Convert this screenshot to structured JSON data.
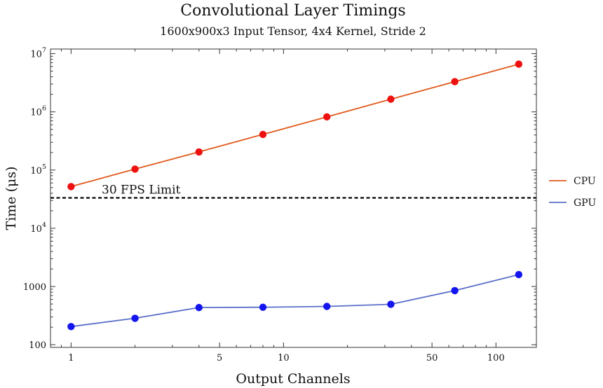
{
  "chart_data": {
    "type": "line",
    "title": "Convolutional Layer Timings",
    "subtitle": "1600x900x3 Input Tensor, 4x4 Kernel, Stride 2",
    "xlabel": "Output Channels",
    "ylabel": "Time (μs)",
    "xscale": "log",
    "yscale": "log",
    "xlim": [
      0.8,
      155
    ],
    "ylim": [
      90,
      12000000
    ],
    "x_ticks": [
      {
        "value": 1,
        "label": "1"
      },
      {
        "value": 5,
        "label": "5"
      },
      {
        "value": 10,
        "label": "10"
      },
      {
        "value": 50,
        "label": "50"
      },
      {
        "value": 100,
        "label": "100"
      }
    ],
    "y_ticks": [
      {
        "value": 100,
        "base": "100",
        "exp": ""
      },
      {
        "value": 1000,
        "base": "1000",
        "exp": ""
      },
      {
        "value": 10000,
        "base": "10",
        "exp": "4"
      },
      {
        "value": 100000,
        "base": "10",
        "exp": "5"
      },
      {
        "value": 1000000,
        "base": "10",
        "exp": "6"
      },
      {
        "value": 10000000,
        "base": "10",
        "exp": "7"
      }
    ],
    "x": [
      1,
      2,
      4,
      8,
      16,
      32,
      64,
      128
    ],
    "series": [
      {
        "name": "CPU",
        "line_color": "#e05a1c",
        "marker_color": "#ee1111",
        "values": [
          52000,
          104000,
          205000,
          410000,
          820000,
          1650000,
          3300000,
          6600000
        ]
      },
      {
        "name": "GPU",
        "line_color": "#5b6fc9",
        "marker_color": "#1414ee",
        "values": [
          205,
          285,
          435,
          440,
          455,
          495,
          850,
          1600
        ]
      }
    ],
    "reference_line": {
      "value": 33333,
      "label": "30 FPS Limit",
      "style": "dashed",
      "color": "#000000"
    },
    "legend": "right",
    "grid": false
  }
}
